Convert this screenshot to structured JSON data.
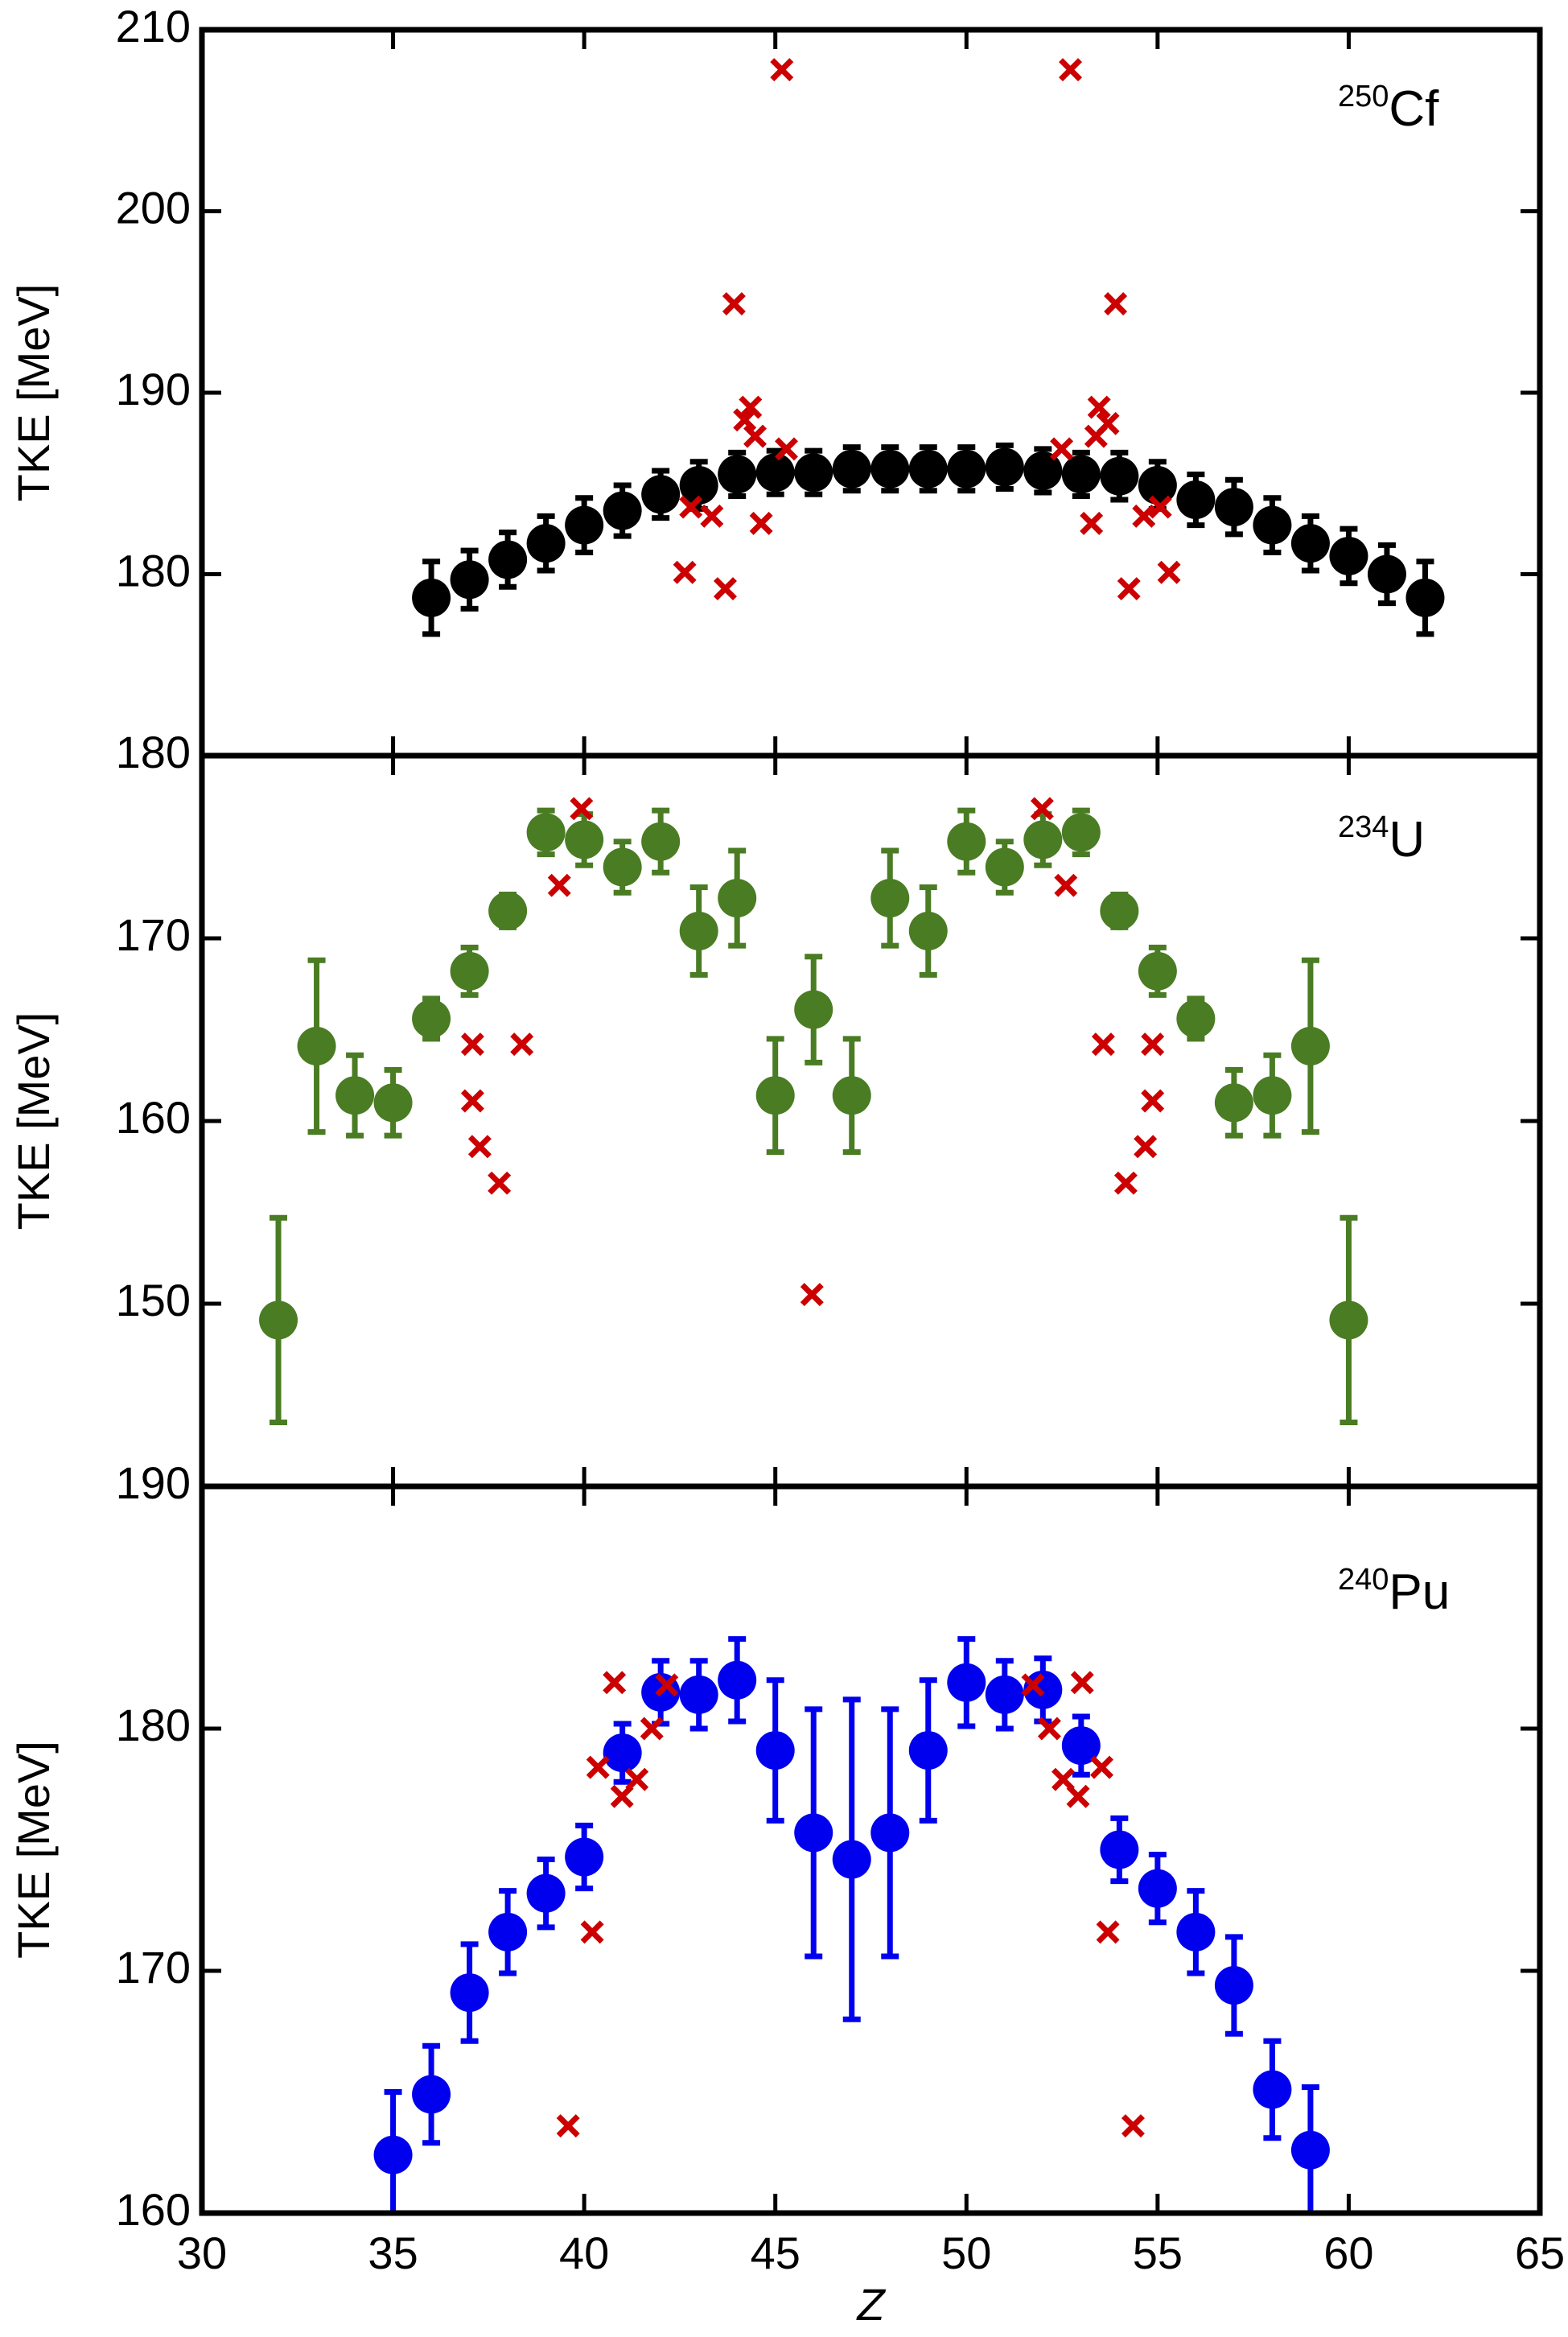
{
  "chart_data": [
    {
      "type": "scatter",
      "ylabel": "TKE [MeV]",
      "label_mass": "250",
      "label_element": "Cf",
      "xlim": [
        30,
        65
      ],
      "ylim": [
        170,
        210
      ],
      "yticks": [
        180,
        190,
        200,
        210
      ],
      "series": [
        {
          "color": "#000000",
          "marker": "circle",
          "x": [
            36,
            37,
            38,
            39,
            40,
            41,
            42,
            43,
            44,
            45,
            46,
            47,
            48,
            49,
            50,
            51,
            52,
            53,
            54,
            55,
            56,
            57,
            58,
            59,
            60,
            61,
            62
          ],
          "values": [
            178.7,
            179.7,
            180.8,
            181.7,
            182.7,
            183.5,
            184.4,
            184.9,
            185.5,
            185.6,
            185.6,
            185.8,
            185.8,
            185.8,
            185.8,
            185.9,
            185.7,
            185.5,
            185.4,
            184.9,
            184.1,
            183.7,
            182.7,
            181.7,
            181.0,
            180.0,
            178.7
          ],
          "errors": [
            2,
            1.6,
            1.5,
            1.5,
            1.5,
            1.4,
            1.3,
            1.3,
            1.2,
            1.2,
            1.2,
            1.2,
            1.2,
            1.2,
            1.2,
            1.2,
            1.2,
            1.2,
            1.3,
            1.3,
            1.4,
            1.5,
            1.5,
            1.5,
            1.5,
            1.6,
            2
          ]
        },
        {
          "color": "#cc0000",
          "marker": "cross",
          "x": [
            45.17,
            52.72,
            43.92,
            53.9,
            44.35,
            44.2,
            53.47,
            53.7,
            44.47,
            53.39,
            45.29,
            52.49,
            42.79,
            43.34,
            54.64,
            55.07,
            44.63,
            53.27,
            42.63,
            55.3,
            43.69,
            54.25
          ],
          "values": [
            207.8,
            207.8,
            194.9,
            194.9,
            189.2,
            188.5,
            189.2,
            188.3,
            187.6,
            187.6,
            186.9,
            186.9,
            183.7,
            183.2,
            183.2,
            183.7,
            182.8,
            182.8,
            180.1,
            180.1,
            179.2,
            179.2
          ]
        }
      ]
    },
    {
      "type": "scatter",
      "ylabel": "TKE [MeV]",
      "label_mass": "234",
      "label_element": "U",
      "xlim": [
        30,
        65
      ],
      "ylim": [
        140,
        180
      ],
      "yticks": [
        150,
        160,
        170,
        180
      ],
      "series": [
        {
          "color": "#4a7c23",
          "marker": "circle",
          "x": [
            32,
            33,
            34,
            35,
            36,
            37,
            38,
            39,
            40,
            41,
            42,
            43,
            44,
            45,
            46,
            47,
            48,
            49,
            50,
            51,
            52,
            53,
            54,
            55,
            56,
            57,
            58,
            59,
            60
          ],
          "values": [
            149.1,
            164.1,
            161.4,
            161.0,
            165.6,
            168.2,
            171.5,
            175.8,
            175.4,
            173.9,
            175.3,
            170.4,
            172.2,
            161.4,
            166.1,
            161.4,
            172.2,
            170.4,
            175.3,
            173.9,
            175.4,
            175.8,
            171.5,
            168.2,
            165.6,
            161.0,
            161.4,
            164.1,
            149.1
          ],
          "errors": [
            5.6,
            4.7,
            2.2,
            1.8,
            1.1,
            1.3,
            0.9,
            1.2,
            1.4,
            1.4,
            1.7,
            2.4,
            2.6,
            3.1,
            2.9,
            3.1,
            2.6,
            2.4,
            1.7,
            1.4,
            1.4,
            1.2,
            0.9,
            1.3,
            1.1,
            1.8,
            2.2,
            4.7,
            5.6
          ]
        },
        {
          "color": "#cc0000",
          "marker": "cross",
          "x": [
            39.93,
            51.98,
            39.35,
            52.6,
            37.08,
            38.37,
            53.58,
            54.87,
            37.08,
            54.87,
            37.27,
            54.68,
            37.78,
            54.17,
            45.96
          ],
          "values": [
            177.1,
            177.1,
            172.9,
            172.9,
            164.2,
            164.2,
            164.2,
            164.2,
            161.1,
            161.1,
            158.6,
            158.6,
            156.6,
            156.6,
            150.5
          ]
        }
      ]
    },
    {
      "type": "scatter",
      "ylabel": "TKE [MeV]",
      "xlabel": "Z",
      "label_mass": "240",
      "label_element": "Pu",
      "xlim": [
        30,
        65
      ],
      "xticks": [
        30,
        35,
        40,
        45,
        50,
        55,
        60,
        65
      ],
      "ylim": [
        160,
        190
      ],
      "yticks": [
        160,
        170,
        180,
        190
      ],
      "series": [
        {
          "color": "#0000ee",
          "marker": "circle",
          "x": [
            35,
            36,
            37,
            38,
            39,
            40,
            41,
            42,
            43,
            44,
            45,
            46,
            47,
            48,
            49,
            50,
            51,
            52,
            53,
            54,
            55,
            56,
            57,
            58,
            59
          ],
          "values": [
            162.4,
            164.9,
            169.1,
            171.6,
            173.2,
            174.7,
            179.0,
            181.5,
            181.4,
            182.0,
            179.1,
            175.7,
            174.6,
            175.7,
            179.1,
            181.9,
            181.4,
            181.6,
            179.3,
            175.0,
            173.4,
            171.6,
            169.4,
            165.1,
            162.6
          ],
          "errors": [
            2.6,
            2,
            2,
            1.7,
            1.4,
            1.3,
            1.2,
            1.3,
            1.4,
            1.7,
            2.9,
            5.1,
            6.6,
            5.1,
            2.9,
            1.8,
            1.4,
            1.3,
            1.2,
            1.3,
            1.4,
            1.7,
            2,
            2,
            2.6
          ]
        },
        {
          "color": "#cc0000",
          "marker": "cross",
          "x": [
            40.79,
            53.03,
            42.16,
            51.74,
            40.36,
            53.54,
            41.38,
            52.53,
            41.77,
            52.17,
            40.99,
            52.92,
            40.21,
            53.7,
            39.58,
            54.36
          ],
          "values": [
            181.9,
            181.9,
            181.8,
            181.8,
            178.4,
            178.4,
            177.9,
            177.9,
            180.0,
            180.0,
            177.2,
            177.2,
            171.6,
            171.6,
            163.6,
            163.6
          ]
        }
      ]
    }
  ]
}
